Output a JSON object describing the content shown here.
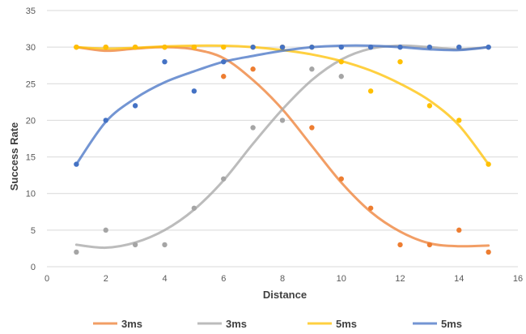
{
  "chart_data": {
    "type": "scatter",
    "title": "",
    "xlabel": "Distance",
    "ylabel": "Success Rate",
    "xlim": [
      0,
      16
    ],
    "ylim": [
      0,
      35
    ],
    "x_ticks": [
      0,
      2,
      4,
      6,
      8,
      10,
      12,
      14,
      16
    ],
    "y_ticks": [
      0,
      5,
      10,
      15,
      20,
      25,
      30,
      35
    ],
    "grid": "horizontal",
    "legend_position": "bottom",
    "series": [
      {
        "name": "3ms",
        "color": "#ED7D31",
        "points": [
          [
            1,
            30
          ],
          [
            2,
            30
          ],
          [
            3,
            30
          ],
          [
            4,
            30
          ],
          [
            5,
            30
          ],
          [
            6,
            26
          ],
          [
            7,
            27
          ],
          [
            8,
            30
          ],
          [
            9,
            19
          ],
          [
            10,
            12
          ],
          [
            11,
            8
          ],
          [
            12,
            3
          ],
          [
            13,
            3
          ],
          [
            14,
            5
          ],
          [
            15,
            2
          ]
        ],
        "trend": [
          [
            1,
            30
          ],
          [
            2,
            29.5
          ],
          [
            3,
            29.8
          ],
          [
            4,
            30
          ],
          [
            5,
            29.7
          ],
          [
            6,
            28.5
          ],
          [
            7,
            25.5
          ],
          [
            8,
            21.5
          ],
          [
            9,
            16.5
          ],
          [
            10,
            11.5
          ],
          [
            11,
            7.5
          ],
          [
            12,
            4.8
          ],
          [
            13,
            3.2
          ],
          [
            14,
            2.8
          ],
          [
            15,
            2.9
          ]
        ]
      },
      {
        "name": "3ms",
        "color": "#A5A5A5",
        "points": [
          [
            1,
            2
          ],
          [
            2,
            5
          ],
          [
            3,
            3
          ],
          [
            4,
            3
          ],
          [
            5,
            8
          ],
          [
            6,
            12
          ],
          [
            7,
            19
          ],
          [
            8,
            20
          ],
          [
            9,
            27
          ],
          [
            10,
            26
          ],
          [
            11,
            30
          ],
          [
            12,
            30
          ],
          [
            13,
            30
          ],
          [
            14,
            30
          ],
          [
            15,
            30
          ]
        ],
        "trend": [
          [
            1,
            3
          ],
          [
            2,
            2.6
          ],
          [
            3,
            3.3
          ],
          [
            4,
            5
          ],
          [
            5,
            7.8
          ],
          [
            6,
            11.8
          ],
          [
            7,
            16.8
          ],
          [
            8,
            21.5
          ],
          [
            9,
            25.5
          ],
          [
            10,
            28.3
          ],
          [
            11,
            29.8
          ],
          [
            12,
            30.2
          ],
          [
            13,
            30
          ],
          [
            14,
            29.7
          ],
          [
            15,
            30
          ]
        ]
      },
      {
        "name": "5ms",
        "color": "#FFC000",
        "points": [
          [
            1,
            30
          ],
          [
            2,
            30
          ],
          [
            3,
            30
          ],
          [
            4,
            30
          ],
          [
            5,
            30
          ],
          [
            6,
            30
          ],
          [
            7,
            30
          ],
          [
            8,
            30
          ],
          [
            9,
            30
          ],
          [
            10,
            28
          ],
          [
            11,
            24
          ],
          [
            12,
            28
          ],
          [
            13,
            22
          ],
          [
            14,
            20
          ],
          [
            15,
            14
          ]
        ],
        "trend": [
          [
            1,
            30
          ],
          [
            2,
            29.8
          ],
          [
            3,
            29.9
          ],
          [
            4,
            30.1
          ],
          [
            5,
            30.2
          ],
          [
            6,
            30.2
          ],
          [
            7,
            30
          ],
          [
            8,
            29.6
          ],
          [
            9,
            29
          ],
          [
            10,
            28.1
          ],
          [
            11,
            26.8
          ],
          [
            12,
            25
          ],
          [
            13,
            22.7
          ],
          [
            14,
            19.3
          ],
          [
            15,
            14
          ]
        ]
      },
      {
        "name": "5ms",
        "color": "#4472C4",
        "points": [
          [
            1,
            14
          ],
          [
            2,
            20
          ],
          [
            3,
            22
          ],
          [
            4,
            28
          ],
          [
            5,
            24
          ],
          [
            6,
            28
          ],
          [
            7,
            30
          ],
          [
            8,
            30
          ],
          [
            9,
            30
          ],
          [
            10,
            30
          ],
          [
            11,
            30
          ],
          [
            12,
            30
          ],
          [
            13,
            30
          ],
          [
            14,
            30
          ],
          [
            15,
            30
          ]
        ],
        "trend": [
          [
            1,
            14
          ],
          [
            2,
            19.8
          ],
          [
            3,
            23
          ],
          [
            4,
            25.2
          ],
          [
            5,
            26.7
          ],
          [
            6,
            28
          ],
          [
            7,
            28.8
          ],
          [
            8,
            29.5
          ],
          [
            9,
            30
          ],
          [
            10,
            30.2
          ],
          [
            11,
            30.2
          ],
          [
            12,
            30
          ],
          [
            13,
            29.7
          ],
          [
            14,
            29.6
          ],
          [
            15,
            30
          ]
        ]
      }
    ]
  }
}
